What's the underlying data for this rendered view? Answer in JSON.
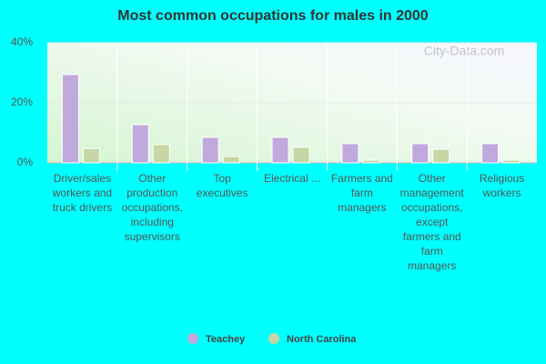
{
  "chart_data": {
    "type": "bar",
    "title": "Most common occupations for males in 2000",
    "watermark": "City-Data.com",
    "categories": [
      "Driver/sales workers and truck drivers",
      "Other production occupations, including supervisors",
      "Top executives",
      "Electrical ...",
      "Farmers and farm managers",
      "Other management occupations, except farmers and farm managers",
      "Religious workers"
    ],
    "series": [
      {
        "name": "Teachey",
        "color": "#c0a9dc",
        "values": [
          29.4,
          12.7,
          8.5,
          8.5,
          6.4,
          6.4,
          6.4
        ]
      },
      {
        "name": "North Carolina",
        "color": "#c6d6a4",
        "values": [
          4.8,
          6.1,
          2.1,
          5.2,
          0.9,
          4.5,
          0.9
        ]
      }
    ],
    "ylim": [
      0,
      40
    ],
    "yticks": [
      {
        "value": 0,
        "label": "0%"
      },
      {
        "value": 20,
        "label": "20%"
      },
      {
        "value": 40,
        "label": "40%"
      }
    ],
    "grid": true
  }
}
